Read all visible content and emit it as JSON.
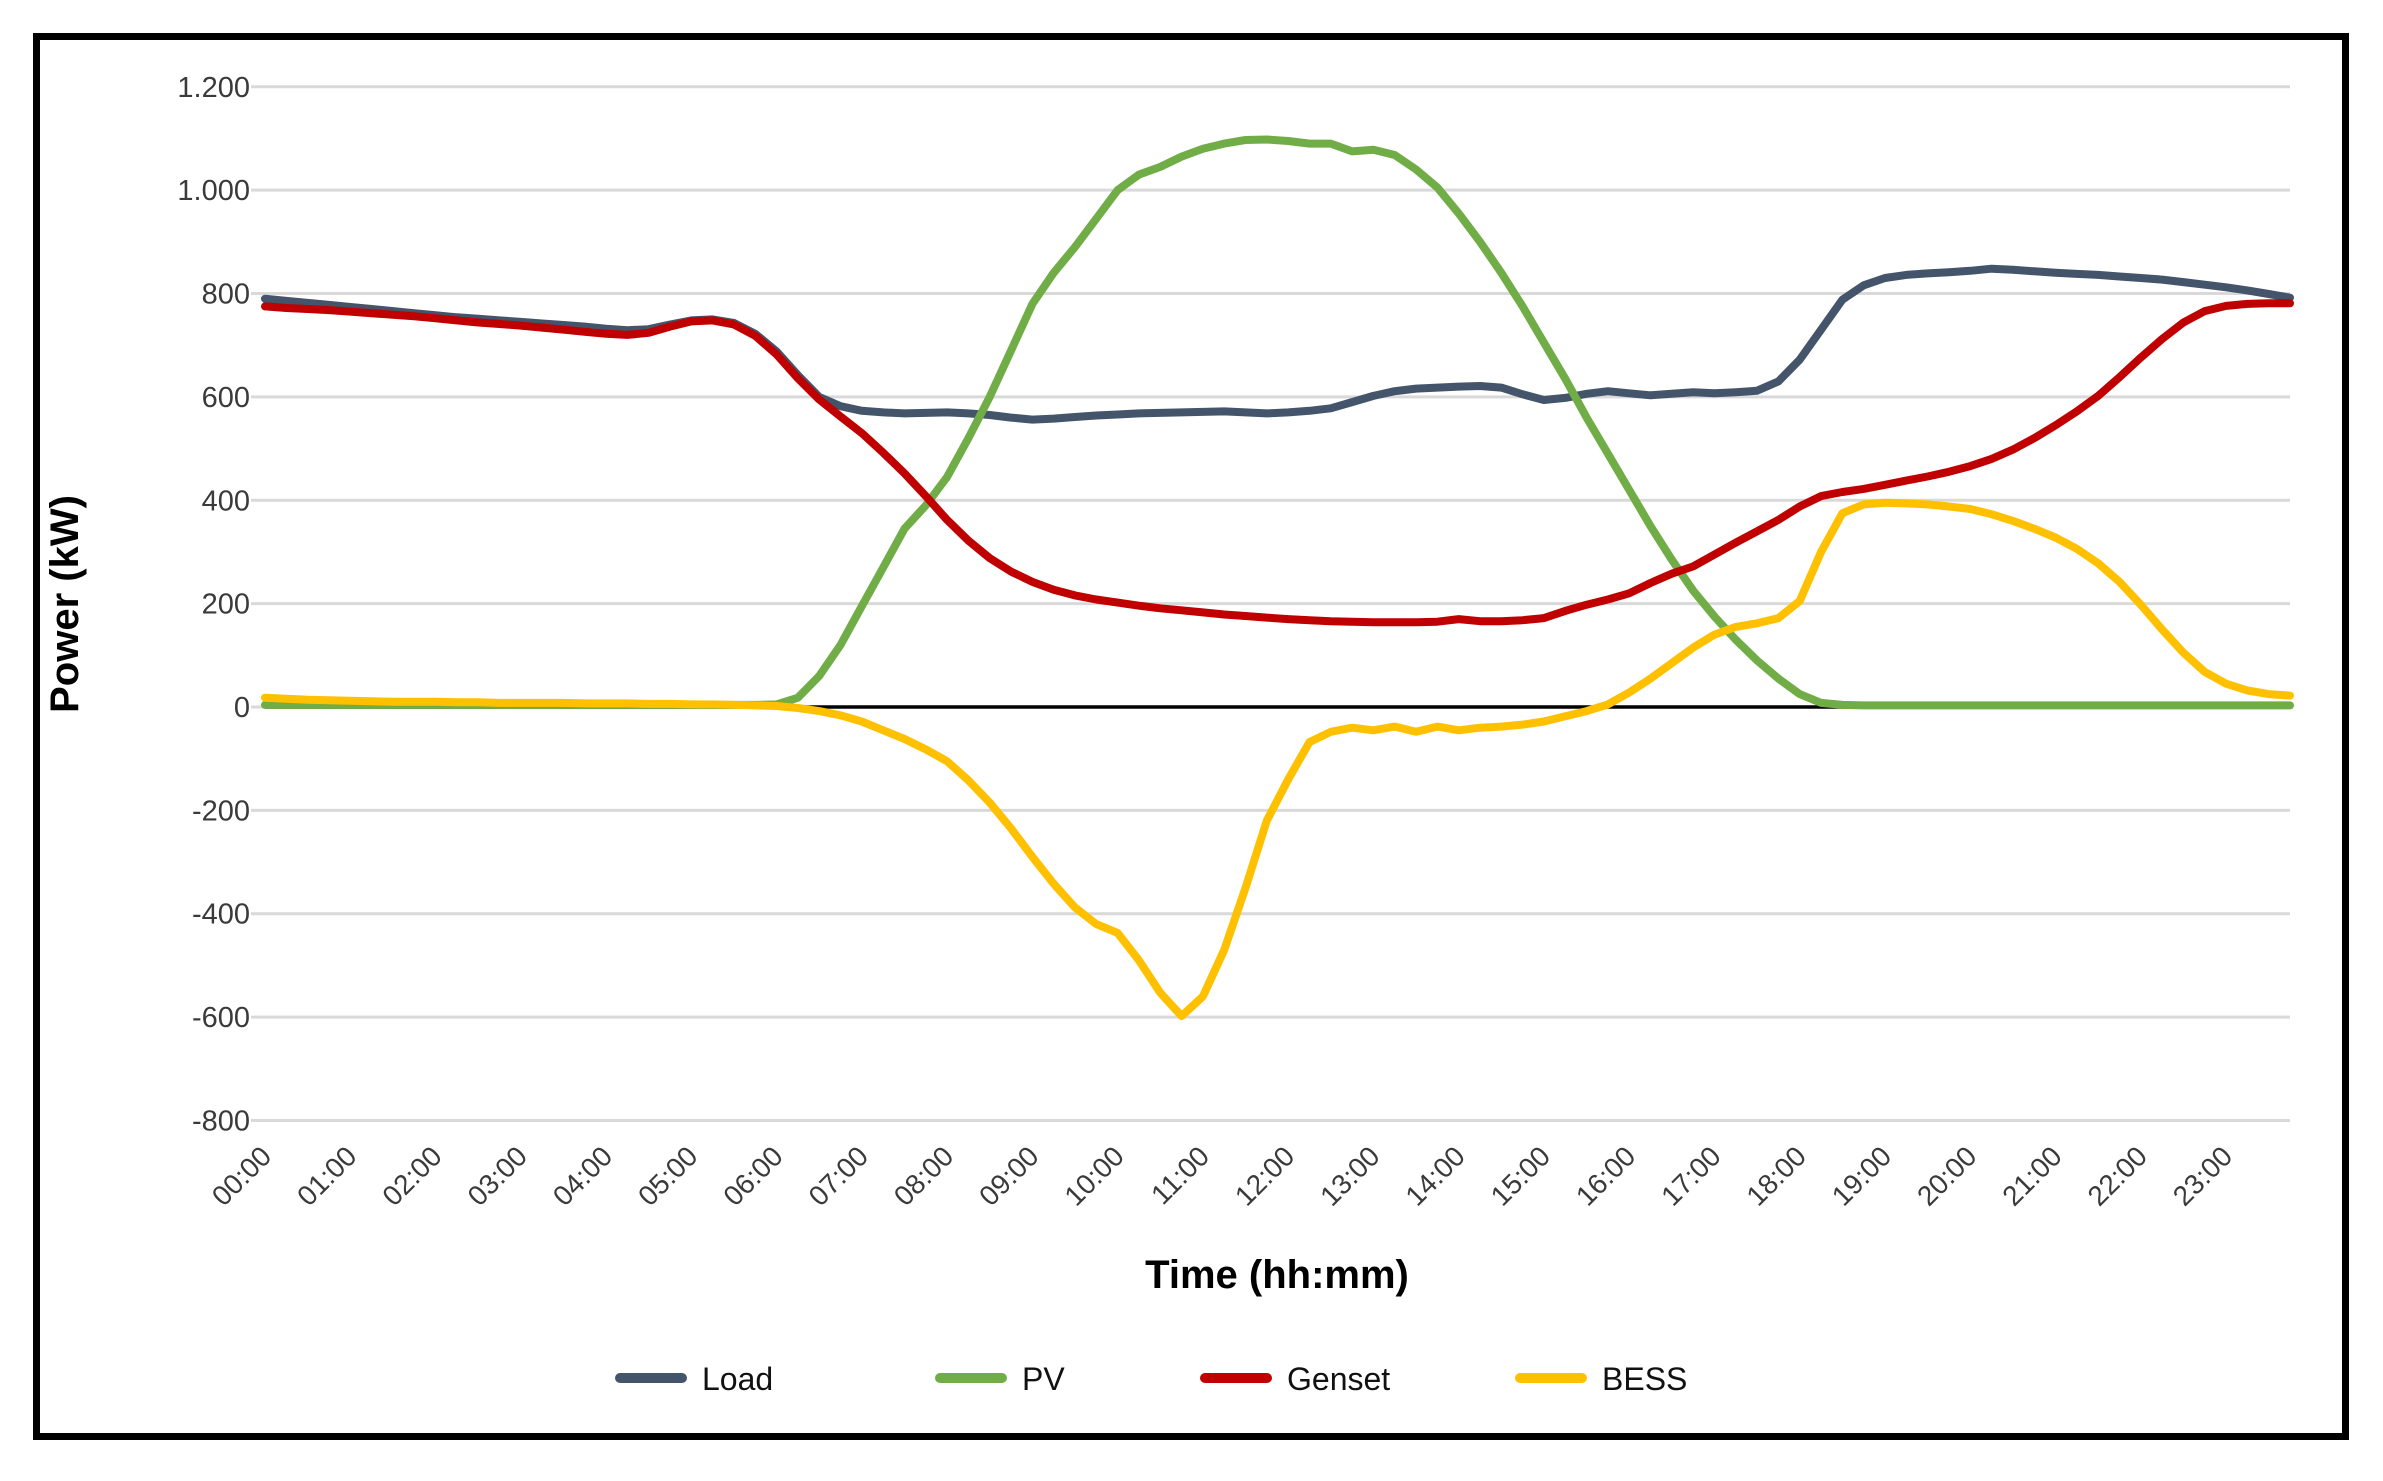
{
  "chart_data": {
    "type": "line",
    "title": "",
    "xlabel": "Time (hh:mm)",
    "ylabel": "Power (kW)",
    "xlim_hours": [
      0,
      23.75
    ],
    "ylim": [
      -800,
      1200
    ],
    "grid": "horizontal",
    "zero_axis_color": "#000000",
    "gridline_color": "#d9d9d9",
    "legend_position": "bottom",
    "x_start_hours": 0,
    "x_step_hours": 0.25,
    "x_tick_labels": [
      "00:00",
      "01:00",
      "02:00",
      "03:00",
      "04:00",
      "05:00",
      "06:00",
      "07:00",
      "08:00",
      "09:00",
      "10:00",
      "11:00",
      "12:00",
      "13:00",
      "14:00",
      "15:00",
      "16:00",
      "17:00",
      "18:00",
      "19:00",
      "20:00",
      "21:00",
      "22:00",
      "23:00"
    ],
    "y_ticks": [
      1200,
      1000,
      800,
      600,
      400,
      200,
      0,
      -200,
      -400,
      -600,
      -800
    ],
    "y_tick_labels": [
      "1.200",
      "1.000",
      "800",
      "600",
      "400",
      "200",
      "0",
      "-200",
      "-400",
      "-600",
      "-800"
    ],
    "series": [
      {
        "name": "Load",
        "color": "#44546A",
        "values": [
          790,
          786,
          782,
          778,
          774,
          770,
          766,
          762,
          758,
          754,
          751,
          748,
          745,
          742,
          739,
          736,
          732,
          729,
          731,
          740,
          748,
          750,
          743,
          722,
          688,
          642,
          600,
          582,
          573,
          570,
          568,
          569,
          570,
          568,
          565,
          560,
          556,
          558,
          561,
          564,
          566,
          568,
          569,
          570,
          571,
          572,
          570,
          568,
          570,
          573,
          578,
          590,
          602,
          611,
          616,
          618,
          620,
          621,
          618,
          605,
          594,
          598,
          606,
          611,
          607,
          603,
          606,
          609,
          607,
          609,
          612,
          630,
          672,
          730,
          788,
          816,
          830,
          836,
          839,
          841,
          844,
          848,
          846,
          843,
          840,
          838,
          836,
          833,
          830,
          827,
          822,
          817,
          812,
          806,
          799,
          792
        ]
      },
      {
        "name": "PV",
        "color": "#70AD47",
        "values": [
          4,
          4,
          4,
          4,
          4,
          4,
          4,
          4,
          4,
          4,
          4,
          4,
          4,
          4,
          4,
          4,
          4,
          4,
          4,
          4,
          4,
          4,
          4,
          4,
          5,
          18,
          60,
          120,
          195,
          270,
          345,
          390,
          445,
          520,
          600,
          690,
          780,
          840,
          890,
          945,
          1000,
          1030,
          1045,
          1065,
          1080,
          1090,
          1097,
          1098,
          1095,
          1090,
          1090,
          1075,
          1078,
          1068,
          1040,
          1005,
          955,
          900,
          840,
          775,
          705,
          635,
          560,
          490,
          420,
          350,
          285,
          225,
          175,
          130,
          90,
          55,
          25,
          8,
          4,
          3,
          3,
          3,
          3,
          3,
          3,
          3,
          3,
          3,
          3,
          3,
          3,
          3,
          3,
          3,
          3,
          3,
          3,
          3,
          3,
          3
        ]
      },
      {
        "name": "Genset",
        "color": "#C00000",
        "values": [
          775,
          772,
          770,
          768,
          765,
          762,
          759,
          756,
          752,
          748,
          744,
          741,
          738,
          734,
          730,
          726,
          722,
          720,
          724,
          736,
          746,
          748,
          740,
          718,
          682,
          636,
          595,
          562,
          530,
          492,
          452,
          408,
          362,
          322,
          288,
          262,
          242,
          227,
          216,
          208,
          202,
          196,
          191,
          187,
          183,
          179,
          176,
          173,
          170,
          168,
          166,
          165,
          164,
          164,
          164,
          165,
          170,
          166,
          166,
          168,
          172,
          186,
          198,
          208,
          220,
          240,
          258,
          272,
          295,
          318,
          340,
          362,
          388,
          408,
          416,
          422,
          430,
          438,
          446,
          455,
          466,
          480,
          498,
          520,
          545,
          572,
          602,
          638,
          676,
          712,
          744,
          766,
          776,
          780,
          781,
          781
        ]
      },
      {
        "name": "BESS",
        "color": "#FFC000",
        "values": [
          18,
          16,
          14,
          13,
          12,
          11,
          10,
          10,
          10,
          9,
          9,
          8,
          8,
          8,
          8,
          7,
          7,
          7,
          6,
          6,
          5,
          5,
          4,
          3,
          2,
          -2,
          -8,
          -16,
          -28,
          -45,
          -62,
          -82,
          -105,
          -142,
          -185,
          -235,
          -290,
          -342,
          -388,
          -420,
          -437,
          -490,
          -553,
          -598,
          -560,
          -470,
          -350,
          -220,
          -140,
          -68,
          -48,
          -40,
          -45,
          -38,
          -48,
          -38,
          -45,
          -40,
          -38,
          -34,
          -28,
          -18,
          -8,
          5,
          28,
          55,
          85,
          115,
          140,
          155,
          162,
          172,
          205,
          300,
          375,
          392,
          395,
          394,
          392,
          388,
          383,
          373,
          360,
          345,
          328,
          306,
          278,
          242,
          198,
          150,
          105,
          68,
          45,
          32,
          25,
          22
        ]
      }
    ]
  }
}
